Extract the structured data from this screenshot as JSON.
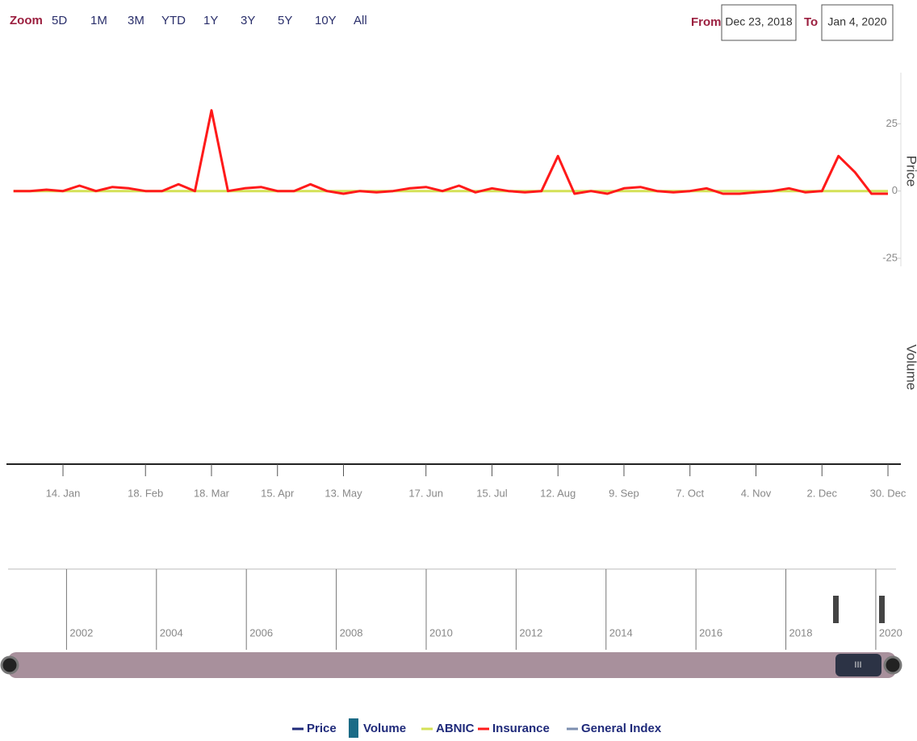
{
  "chart_data": {
    "type": "line",
    "zoom": {
      "label": "Zoom",
      "buttons": [
        "5D",
        "1M",
        "3M",
        "YTD",
        "1Y",
        "3Y",
        "5Y",
        "10Y",
        "All"
      ]
    },
    "range": {
      "from_label": "From",
      "from": "Dec 23, 2018",
      "to_label": "To",
      "to": "Jan 4, 2020"
    },
    "y_axis_title": "Price",
    "y2_axis_title": "Volume",
    "categories": [
      null,
      null,
      null,
      "14. Jan",
      null,
      null,
      null,
      null,
      "18. Feb",
      null,
      null,
      null,
      "18. Mar",
      null,
      null,
      null,
      "15. Apr",
      null,
      null,
      null,
      "13. May",
      null,
      null,
      null,
      null,
      "17. Jun",
      null,
      null,
      null,
      "15. Jul",
      null,
      null,
      null,
      "12. Aug",
      null,
      null,
      null,
      "9. Sep",
      null,
      null,
      null,
      "7. Oct",
      null,
      null,
      null,
      "4. Nov",
      null,
      null,
      null,
      "2. Dec",
      null,
      null,
      null,
      "30. Dec"
    ],
    "ylim": [
      -28,
      44
    ],
    "yticks": [
      -25,
      0,
      25
    ],
    "series": [
      {
        "name": "Price",
        "color": "#1f2a7a",
        "marker": "line",
        "values": [
          null,
          null,
          null,
          null,
          null,
          null,
          null,
          null,
          null,
          null,
          null,
          null,
          null,
          null,
          null,
          null,
          null,
          null,
          null,
          null,
          null,
          null,
          null,
          null,
          null,
          null,
          null,
          null,
          null,
          null,
          null,
          null,
          null,
          null,
          null,
          null,
          null,
          null,
          null,
          null,
          null,
          null,
          null,
          null,
          null,
          null,
          null,
          null,
          null,
          null,
          null,
          null,
          null,
          null
        ]
      },
      {
        "name": "Volume",
        "color": "#1b6b86",
        "marker": "square",
        "values": [
          null,
          null,
          null,
          null,
          null,
          null,
          null,
          null,
          null,
          null,
          null,
          null,
          null,
          null,
          null,
          null,
          null,
          null,
          null,
          null,
          null,
          null,
          null,
          null,
          null,
          null,
          null,
          null,
          null,
          null,
          null,
          null,
          null,
          null,
          null,
          null,
          null,
          null,
          null,
          null,
          null,
          null,
          null,
          null,
          null,
          null,
          null,
          null,
          null,
          null,
          null,
          null,
          null,
          null
        ]
      },
      {
        "name": "ABNIC",
        "color": "#d4e157",
        "marker": "line",
        "values": [
          0,
          0,
          0,
          0,
          0,
          0,
          0,
          0,
          0,
          0,
          0,
          0,
          0,
          0,
          0,
          0,
          0,
          0,
          0,
          0,
          0,
          0,
          0,
          0,
          0,
          0,
          0,
          0,
          0,
          0,
          0,
          0,
          0,
          0,
          0,
          0,
          0,
          0,
          0,
          0,
          0,
          0,
          0,
          0,
          0,
          0,
          0,
          0,
          0,
          0,
          0,
          0,
          0,
          0
        ]
      },
      {
        "name": "Insurance",
        "color": "#ff1a1a",
        "marker": "line",
        "values": [
          0,
          0,
          0.5,
          0,
          2,
          0,
          1.5,
          1,
          0,
          0,
          2.5,
          0,
          30,
          0,
          1,
          1.5,
          0,
          0,
          2.5,
          0,
          -1,
          0,
          -0.5,
          0,
          1,
          1.5,
          0,
          2,
          -0.5,
          1,
          0,
          -0.5,
          0,
          13,
          -1,
          0,
          -1,
          1,
          1.5,
          0,
          -0.5,
          0,
          1,
          -1,
          -1,
          -0.5,
          0,
          1,
          -0.5,
          0,
          13,
          7,
          -1,
          -1
        ]
      },
      {
        "name": "General Index",
        "color": "#7d8fb0",
        "marker": "line",
        "values": [
          null,
          null,
          null,
          null,
          null,
          null,
          null,
          null,
          null,
          null,
          null,
          null,
          null,
          null,
          null,
          null,
          null,
          null,
          null,
          null,
          null,
          null,
          null,
          null,
          null,
          null,
          null,
          null,
          null,
          null,
          null,
          null,
          null,
          null,
          null,
          null,
          null,
          null,
          null,
          null,
          null,
          null,
          null,
          null,
          null,
          null,
          null,
          null,
          null,
          null,
          null,
          null,
          null,
          null
        ]
      }
    ],
    "navigator": {
      "xlim": [
        2000.7,
        2020.45
      ],
      "xticks": [
        2002,
        2004,
        2006,
        2008,
        2010,
        2012,
        2014,
        2016,
        2018,
        2020
      ]
    }
  }
}
